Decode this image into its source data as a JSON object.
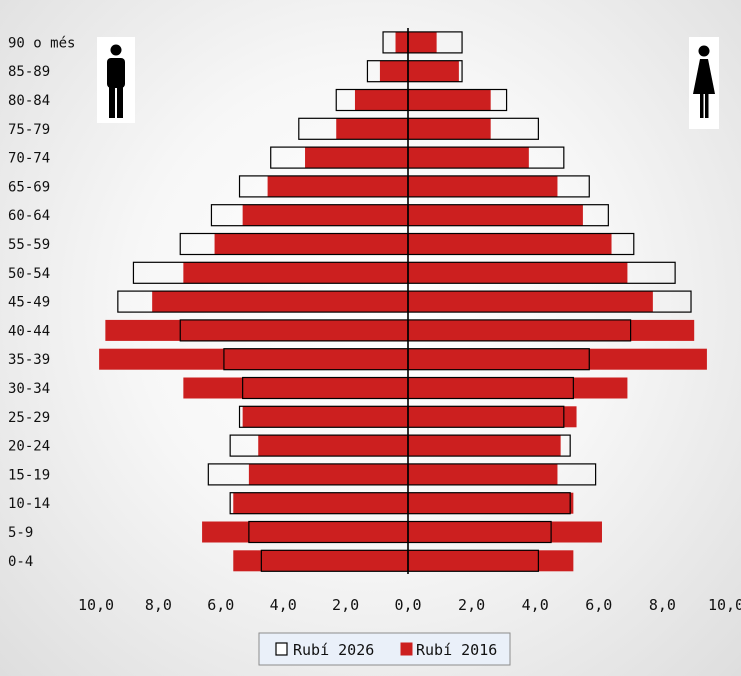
{
  "chart_data": {
    "type": "bar",
    "orientation": "horizontal",
    "subtype": "population-pyramid",
    "categories": [
      "90 o més",
      "85-89",
      "80-84",
      "75-79",
      "70-74",
      "65-69",
      "60-64",
      "55-59",
      "50-54",
      "45-49",
      "40-44",
      "35-39",
      "30-34",
      "25-29",
      "20-24",
      "15-19",
      "10-14",
      "5-9",
      "0-4"
    ],
    "series": [
      {
        "name": "Rubí 2016",
        "style": "filled",
        "color": "#cc1f1f",
        "male": [
          0.4,
          0.9,
          1.7,
          2.3,
          3.3,
          4.5,
          5.3,
          6.2,
          7.2,
          8.2,
          9.7,
          9.9,
          7.2,
          5.3,
          4.8,
          5.1,
          5.6,
          6.6,
          5.6
        ],
        "female": [
          0.9,
          1.6,
          2.6,
          2.6,
          3.8,
          4.7,
          5.5,
          6.4,
          6.9,
          7.7,
          9.0,
          9.4,
          6.9,
          5.3,
          4.8,
          4.7,
          5.2,
          6.1,
          5.2
        ]
      },
      {
        "name": "Rubí 2026",
        "style": "outline",
        "color": "#ffffff",
        "male": [
          0.8,
          1.3,
          2.3,
          3.5,
          4.4,
          5.4,
          6.3,
          7.3,
          8.8,
          9.3,
          7.3,
          5.9,
          5.3,
          5.4,
          5.7,
          6.4,
          5.7,
          5.1,
          4.7
        ],
        "female": [
          1.7,
          1.7,
          3.1,
          4.1,
          4.9,
          5.7,
          6.3,
          7.1,
          8.4,
          8.9,
          7.0,
          5.7,
          5.2,
          4.9,
          5.1,
          5.9,
          5.1,
          4.5,
          4.1
        ]
      }
    ],
    "x_ticks": [
      "10,0",
      "8,0",
      "6,0",
      "4,0",
      "2,0",
      "0,0",
      "2,0",
      "4,0",
      "6,0",
      "8,0",
      "10,0"
    ],
    "xlim": [
      -10,
      10
    ],
    "title": "",
    "xlabel": "",
    "ylabel": "",
    "grid": false,
    "legend_position": "bottom-center",
    "legend": [
      "Rubí 2026",
      "Rubí 2016"
    ]
  },
  "icons": {
    "left": "male-figure-icon",
    "right": "female-figure-icon"
  }
}
